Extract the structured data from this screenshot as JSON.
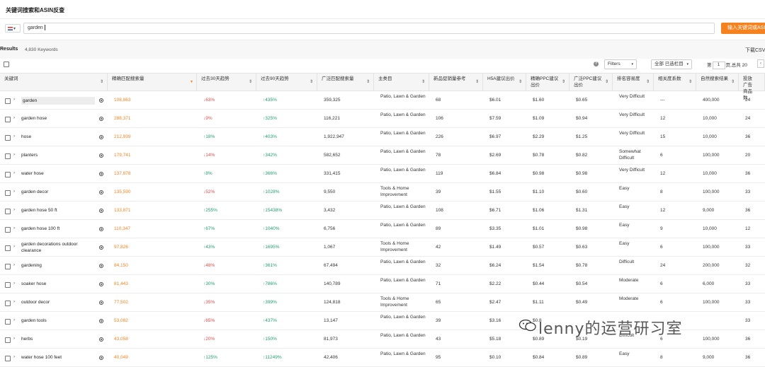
{
  "page_title": "关键词搜索和ASIN反查",
  "search": {
    "country": "",
    "query": "garden",
    "button": "输入关键词或ASIN"
  },
  "results": {
    "label": "Results",
    "count": "4,830 Keywords",
    "download": "下载CSV"
  },
  "toolbar": {
    "help": "?",
    "filters": "Filters",
    "columns": "全部 已选栏目",
    "page_prefix": "第",
    "page": "1",
    "page_suffix": "页,总共 20",
    "prev": "‹"
  },
  "columns": [
    "关键词",
    "精确匹配搜索量",
    "过去30天趋势",
    "过去90天趋势",
    "广泛匹配搜索量",
    "主类目",
    "新品促销量参考",
    "H5A建议出价",
    "精确PPC建议出价",
    "广泛PPC建议出价",
    "排名容易度",
    "相关度系数",
    "自然搜索结果",
    "投放广告商品数"
  ],
  "rows": [
    {
      "keyword": "garden",
      "exact": "108,863",
      "d30": "↓63%",
      "d90": "↑435%",
      "broad": "359,325",
      "category": "Patio, Lawn & Garden",
      "promo": "68",
      "h5a": "$6.01",
      "exact_ppc": "$1.60",
      "broad_ppc": "$0.65",
      "difficulty": "Very Difficult",
      "relevance": "---",
      "organic": "400,000",
      "ads": "24"
    },
    {
      "keyword": "garden hose",
      "exact": "288,371",
      "d30": "↓9%",
      "d90": "↑325%",
      "broad": "116,221",
      "category": "Patio, Lawn & Garden",
      "promo": "106",
      "h5a": "$7.59",
      "exact_ppc": "$1.09",
      "broad_ppc": "$0.94",
      "difficulty": "Very Difficult",
      "relevance": "12",
      "organic": "10,000",
      "ads": "24"
    },
    {
      "keyword": "hose",
      "exact": "212,939",
      "d30": "↑18%",
      "d90": "↑403%",
      "broad": "1,922,947",
      "category": "Patio, Lawn & Garden",
      "promo": "226",
      "h5a": "$6.97",
      "exact_ppc": "$2.29",
      "broad_ppc": "$1.25",
      "difficulty": "Very Difficult",
      "relevance": "15",
      "organic": "10,000",
      "ads": "36"
    },
    {
      "keyword": "planters",
      "exact": "179,741",
      "d30": "↓14%",
      "d90": "↑342%",
      "broad": "582,652",
      "category": "Patio, Lawn & Garden",
      "promo": "78",
      "h5a": "$2.69",
      "exact_ppc": "$0.78",
      "broad_ppc": "$0.82",
      "difficulty": "Somewhat Difficult",
      "relevance": "6",
      "organic": "100,000",
      "ads": "20"
    },
    {
      "keyword": "water hose",
      "exact": "137,878",
      "d30": "↑8%",
      "d90": "↑366%",
      "broad": "331,415",
      "category": "Patio, Lawn & Garden",
      "promo": "119",
      "h5a": "$6.84",
      "exact_ppc": "$0.98",
      "broad_ppc": "$0.98",
      "difficulty": "Very Difficult",
      "relevance": "12",
      "organic": "10,000",
      "ads": "36"
    },
    {
      "keyword": "garden decor",
      "exact": "135,590",
      "d30": "↓52%",
      "d90": "↑1028%",
      "broad": "9,550",
      "category": "Tools & Home Improvement",
      "promo": "39",
      "h5a": "$1.55",
      "exact_ppc": "$1.10",
      "broad_ppc": "$0.60",
      "difficulty": "Easy",
      "relevance": "8",
      "organic": "100,000",
      "ads": "33"
    },
    {
      "keyword": "garden hose 50 ft",
      "exact": "133,871",
      "d30": "↑255%",
      "d90": "↑15438%",
      "broad": "3,432",
      "category": "Patio, Lawn & Garden",
      "promo": "108",
      "h5a": "$6.71",
      "exact_ppc": "$1.06",
      "broad_ppc": "$1.31",
      "difficulty": "Easy",
      "relevance": "12",
      "organic": "9,000",
      "ads": "36"
    },
    {
      "keyword": "garden hose 100 ft",
      "exact": "110,347",
      "d30": "↑67%",
      "d90": "↑1040%",
      "broad": "6,756",
      "category": "Patio, Lawn & Garden",
      "promo": "89",
      "h5a": "$3.35",
      "exact_ppc": "$1.01",
      "broad_ppc": "$0.98",
      "difficulty": "Easy",
      "relevance": "9",
      "organic": "10,000",
      "ads": "12"
    },
    {
      "keyword": "garden decorations outdoor clearance",
      "exact": "97,826",
      "d30": "↑43%",
      "d90": "↑1695%",
      "broad": "1,067",
      "category": "Tools & Home Improvement",
      "promo": "42",
      "h5a": "$1.49",
      "exact_ppc": "$0.57",
      "broad_ppc": "$0.63",
      "difficulty": "Easy",
      "relevance": "6",
      "organic": "100,000",
      "ads": "33"
    },
    {
      "keyword": "gardening",
      "exact": "84,150",
      "d30": "↓48%",
      "d90": "↑361%",
      "broad": "67,494",
      "category": "Patio, Lawn & Garden",
      "promo": "32",
      "h5a": "$6.24",
      "exact_ppc": "$1.54",
      "broad_ppc": "$0.78",
      "difficulty": "Difficult",
      "relevance": "24",
      "organic": "200,000",
      "ads": "32"
    },
    {
      "keyword": "soaker hose",
      "exact": "81,443",
      "d30": "↑30%",
      "d90": "↑786%",
      "broad": "140,789",
      "category": "Patio, Lawn & Garden",
      "promo": "71",
      "h5a": "$2.22",
      "exact_ppc": "$0.44",
      "broad_ppc": "$0.54",
      "difficulty": "Moderate",
      "relevance": "6",
      "organic": "6,000",
      "ads": "33"
    },
    {
      "keyword": "outdoor decor",
      "exact": "77,502",
      "d30": "↓35%",
      "d90": "↑399%",
      "broad": "124,818",
      "category": "Tools & Home Improvement",
      "promo": "65",
      "h5a": "$2.47",
      "exact_ppc": "$1.11",
      "broad_ppc": "$0.49",
      "difficulty": "Moderate",
      "relevance": "6",
      "organic": "100,000",
      "ads": "33"
    },
    {
      "keyword": "garden tools",
      "exact": "53,082",
      "d30": "↓65%",
      "d90": "↑437%",
      "broad": "13,147",
      "category": "Patio, Lawn & Garden",
      "promo": "39",
      "h5a": "$3.16",
      "exact_ppc": "$0.8",
      "broad_ppc": "",
      "difficulty": "",
      "relevance": "",
      "organic": "",
      "ads": "33"
    },
    {
      "keyword": "herbs",
      "exact": "43,058",
      "d30": "↓20%",
      "d90": "↑150%",
      "broad": "81,973",
      "category": "Patio, Lawn & Garden",
      "promo": "43",
      "h5a": "$5.18",
      "exact_ppc": "$0.89",
      "broad_ppc": "$0.19",
      "difficulty": "Difficult",
      "relevance": "6",
      "organic": "100,000",
      "ads": "36"
    },
    {
      "keyword": "water hose 100 feet",
      "exact": "40,049",
      "d30": "↑125%",
      "d90": "↑11249%",
      "broad": "42,406",
      "category": "Patio, Lawn & Garden",
      "promo": "95",
      "h5a": "$0.10",
      "exact_ppc": "$0.84",
      "broad_ppc": "$0.89",
      "difficulty": "Easy",
      "relevance": "8",
      "organic": "9,000",
      "ads": "36"
    }
  ],
  "watermark": "lenny的运营研习室",
  "colors": {
    "accent": "#f5821f",
    "down": "#e04a4a",
    "up": "#1f9e6e"
  }
}
